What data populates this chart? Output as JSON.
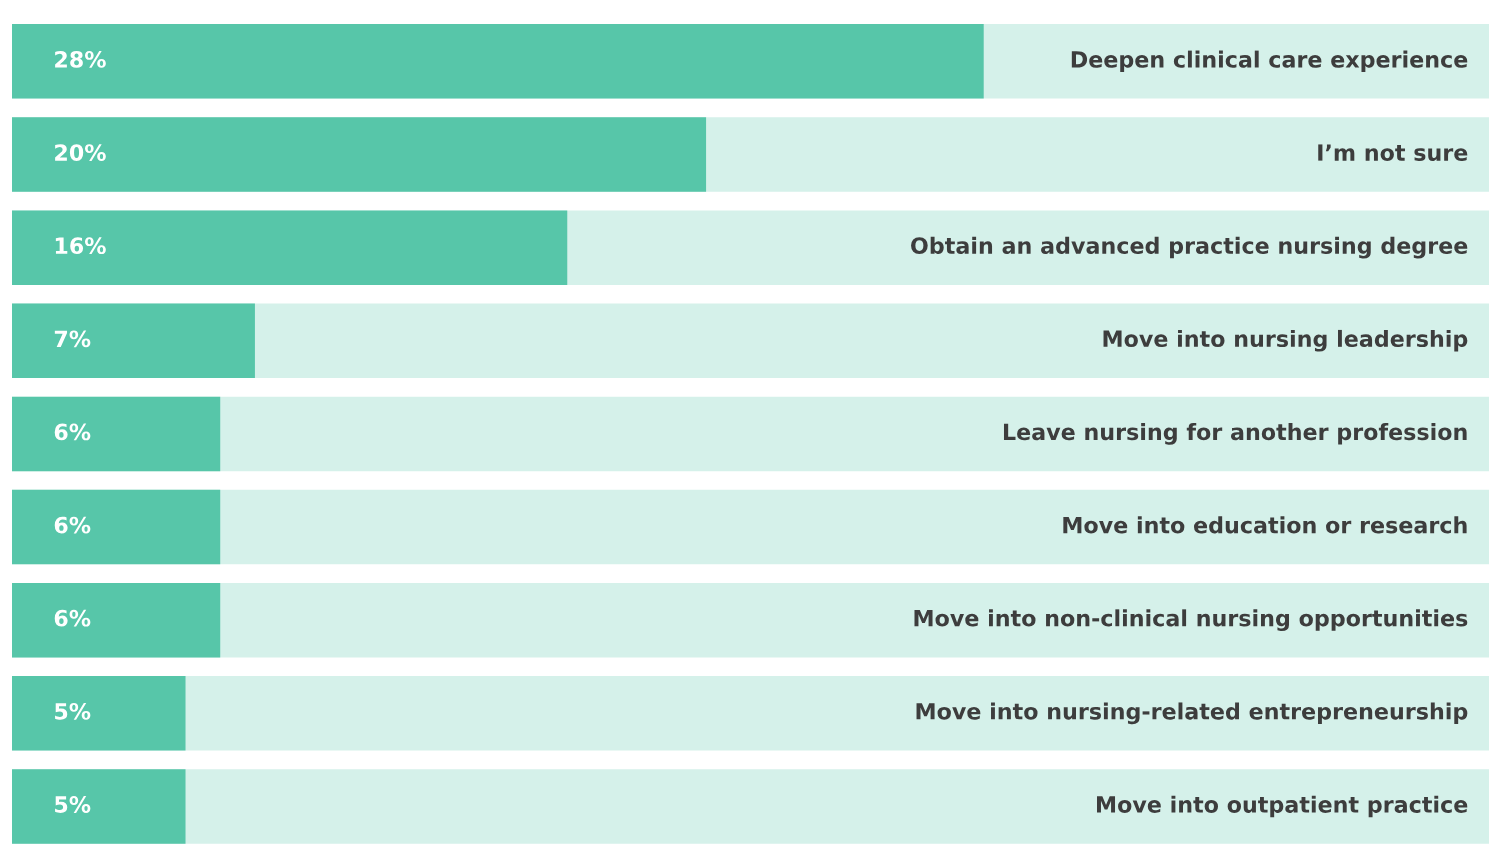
{
  "chart_data": {
    "type": "bar",
    "orientation": "horizontal",
    "categories": [
      "Deepen clinical care experience",
      "I’m not sure",
      "Obtain an advanced practice nursing degree",
      "Move into nursing leadership",
      "Leave nursing for another profession",
      "Move into education or research",
      "Move into non-clinical nursing opportunities",
      "Move into nursing-related entrepreneurship",
      "Move into outpatient practice"
    ],
    "values": [
      28,
      20,
      16,
      7,
      6,
      6,
      6,
      5,
      5
    ],
    "value_labels": [
      "28%",
      "20%",
      "16%",
      "7%",
      "6%",
      "6%",
      "6%",
      "5%",
      "5%"
    ],
    "color": "#57c6a9"
  }
}
